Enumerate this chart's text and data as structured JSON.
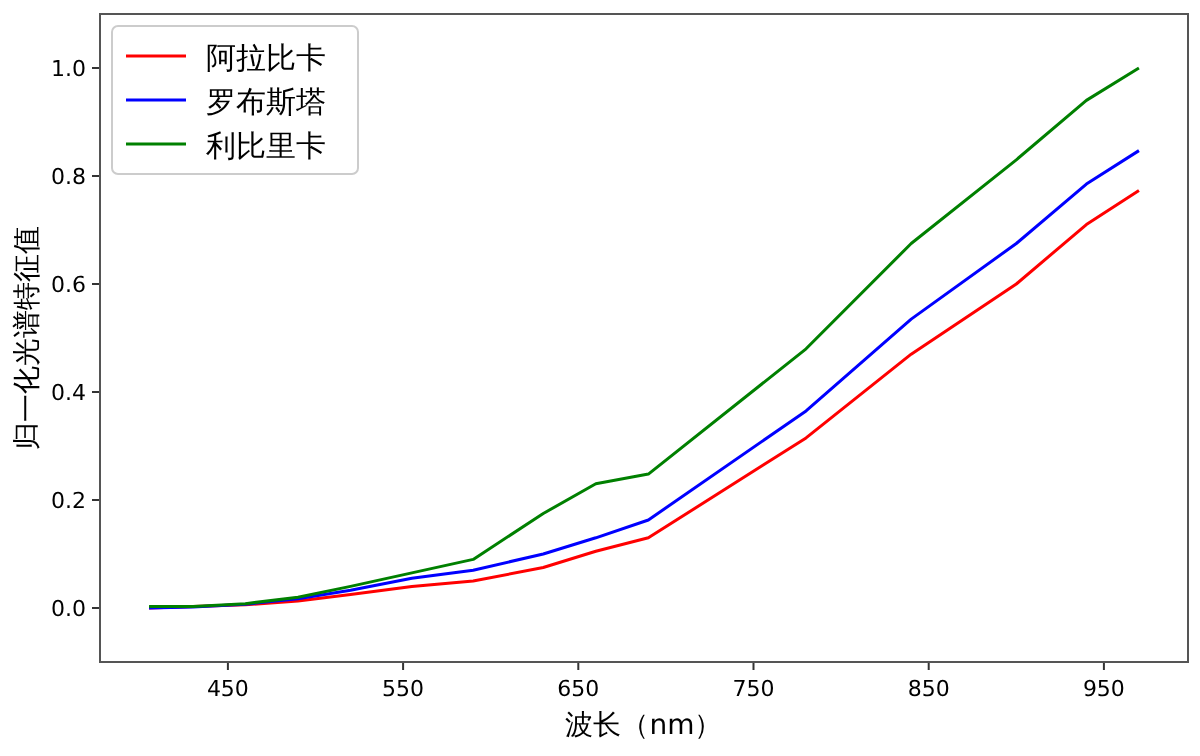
{
  "chart_data": {
    "type": "line",
    "xlabel": "波长（nm）",
    "ylabel": "归一化光谱特征值",
    "x": [
      405,
      430,
      460,
      490,
      520,
      555,
      590,
      630,
      660,
      690,
      780,
      840,
      900,
      940,
      970
    ],
    "series": [
      {
        "name": "阿拉比卡",
        "color": "#ff0000",
        "values": [
          0.0,
          null,
          0.006,
          0.013,
          0.025,
          0.04,
          0.05,
          0.075,
          0.105,
          0.13,
          0.315,
          0.47,
          0.6,
          0.71,
          0.773
        ]
      },
      {
        "name": "罗布斯塔",
        "color": "#0000ff",
        "values": [
          0.0,
          0.002,
          0.007,
          0.017,
          0.033,
          0.055,
          0.07,
          0.1,
          0.13,
          0.163,
          0.365,
          0.535,
          0.675,
          0.785,
          0.847
        ]
      },
      {
        "name": "利比里卡",
        "color": "#008000",
        "values": [
          0.003,
          0.003,
          0.008,
          0.02,
          0.04,
          0.065,
          0.09,
          0.175,
          0.23,
          0.248,
          0.48,
          0.675,
          0.83,
          0.94,
          1.0
        ]
      }
    ],
    "xlim": [
      377,
      998
    ],
    "ylim": [
      -0.1,
      1.1
    ],
    "xticks": [
      450,
      550,
      650,
      750,
      850,
      950
    ],
    "yticks": [
      {
        "value": 0,
        "label": "0.0"
      },
      {
        "value": 0.2,
        "label": "0.2"
      },
      {
        "value": 0.4,
        "label": "0.4"
      },
      {
        "value": 0.6,
        "label": "0.6"
      },
      {
        "value": 0.8,
        "label": "0.8"
      },
      {
        "value": 1,
        "label": "1.0"
      }
    ],
    "grid": false,
    "legend": "top left",
    "line_style": "solid",
    "marker": "none"
  }
}
